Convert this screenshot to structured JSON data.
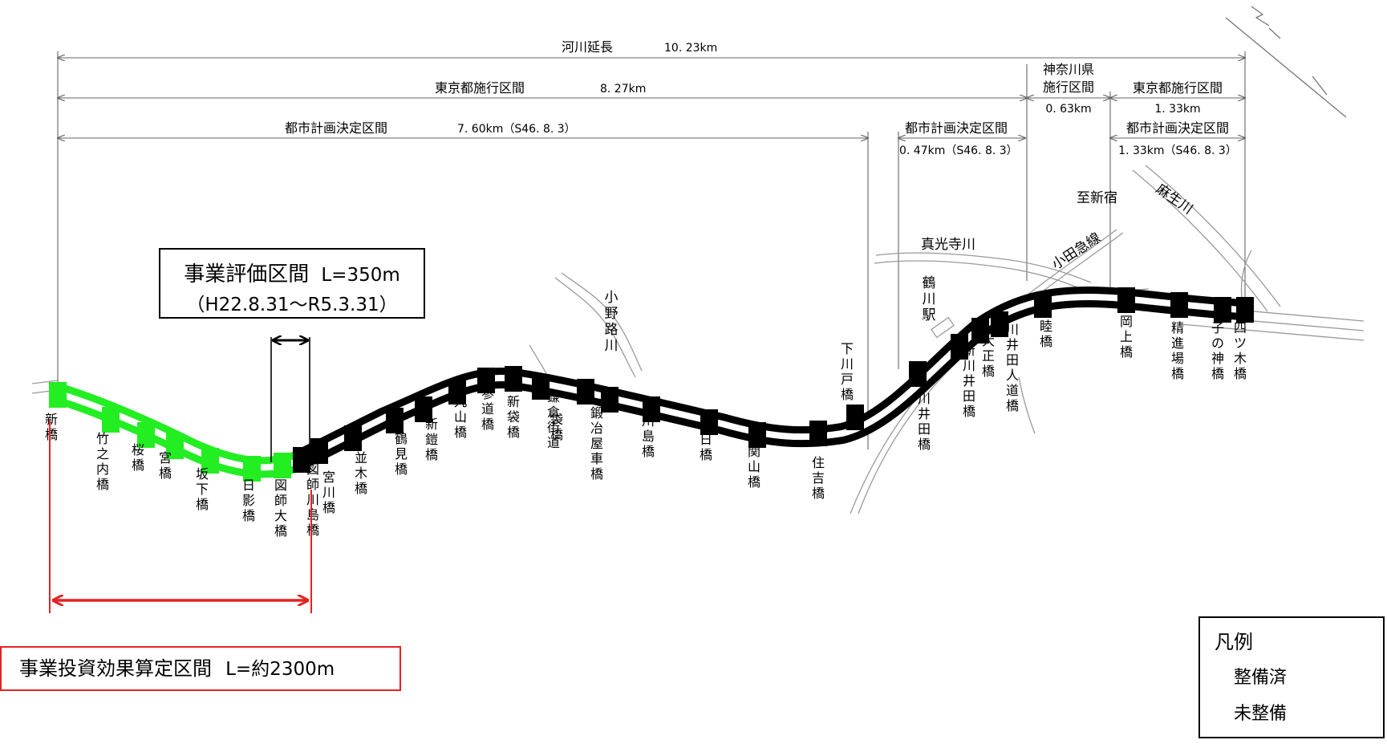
{
  "colors": {
    "done": "#000000",
    "not_done": "#22ee22",
    "accent_red": "#e52222",
    "line": "#999999"
  },
  "dimensions": [
    {
      "label": "河川延長",
      "value": "10. 23km"
    },
    {
      "label": "東京都施行区間",
      "value": "8. 27km"
    },
    {
      "label": "都市計画決定区間",
      "value": "7. 60km（S46. 8. 3）"
    },
    {
      "label": "都市計画決定区間",
      "value": "0. 47km（S46. 8. 3）"
    },
    {
      "label": "神奈川県施行区間",
      "line1": "神奈川県",
      "line2": "施行区間",
      "value": "0. 63km"
    },
    {
      "label": "東京都施行区間",
      "value": "1. 33km"
    },
    {
      "label": "都市計画決定区間",
      "value": "1. 33km（S46. 8. 3）"
    }
  ],
  "evaluation_box": {
    "title": "事業評価区間",
    "length": "L=350m",
    "period": "（H22.8.31〜R5.3.31）"
  },
  "investment_box": {
    "title": "事業投資効果算定区間",
    "length": "L=約2300m"
  },
  "places": {
    "ono_river": "小野路川",
    "shinkoji_river": "真光寺川",
    "tsurukawa_station": "鶴川駅",
    "odakyu_line": "小田急線",
    "to_shinjuku": "至新宿",
    "asao_river": "麻生川"
  },
  "bridges": [
    {
      "name": "新橋",
      "status": "not_done"
    },
    {
      "name": "竹之内橋",
      "status": "not_done"
    },
    {
      "name": "桜橋",
      "status": "not_done"
    },
    {
      "name": "宮橋",
      "status": "not_done"
    },
    {
      "name": "坂下橋",
      "status": "not_done"
    },
    {
      "name": "日影橋",
      "status": "not_done"
    },
    {
      "name": "図師大橋",
      "status": "not_done"
    },
    {
      "name": "図師川島橋",
      "status": "done"
    },
    {
      "name": "宮川橋",
      "status": "done"
    },
    {
      "name": "並木橋",
      "status": "done"
    },
    {
      "name": "鶴見橋",
      "status": "done"
    },
    {
      "name": "新鎧橋",
      "status": "done"
    },
    {
      "name": "丸山橋",
      "status": "done"
    },
    {
      "name": "参道橋",
      "status": "done"
    },
    {
      "name": "新袋橋",
      "status": "done"
    },
    {
      "name": "鎌倉街道",
      "status": "done"
    },
    {
      "name": "袋橋",
      "status": "done"
    },
    {
      "name": "鍛冶屋車橋",
      "status": "done"
    },
    {
      "name": "川島橋",
      "status": "done"
    },
    {
      "name": "春日橋",
      "status": "done"
    },
    {
      "name": "関山橋",
      "status": "done"
    },
    {
      "name": "住吉橋",
      "status": "done"
    },
    {
      "name": "下川戸橋",
      "status": "done"
    },
    {
      "name": "川井田橋",
      "status": "done"
    },
    {
      "name": "新川井田橋",
      "status": "done"
    },
    {
      "name": "大正橋",
      "status": "done"
    },
    {
      "name": "川井田人道橋",
      "status": "done"
    },
    {
      "name": "睦橋",
      "status": "done"
    },
    {
      "name": "岡上橋",
      "status": "done"
    },
    {
      "name": "精進場橋",
      "status": "done"
    },
    {
      "name": "子の神橋",
      "status": "done"
    },
    {
      "name": "四ツ木橋",
      "status": "done"
    }
  ],
  "legend": {
    "title": "凡例",
    "items": [
      {
        "label": "整備済",
        "status": "done"
      },
      {
        "label": "未整備",
        "status": "not_done"
      }
    ]
  }
}
